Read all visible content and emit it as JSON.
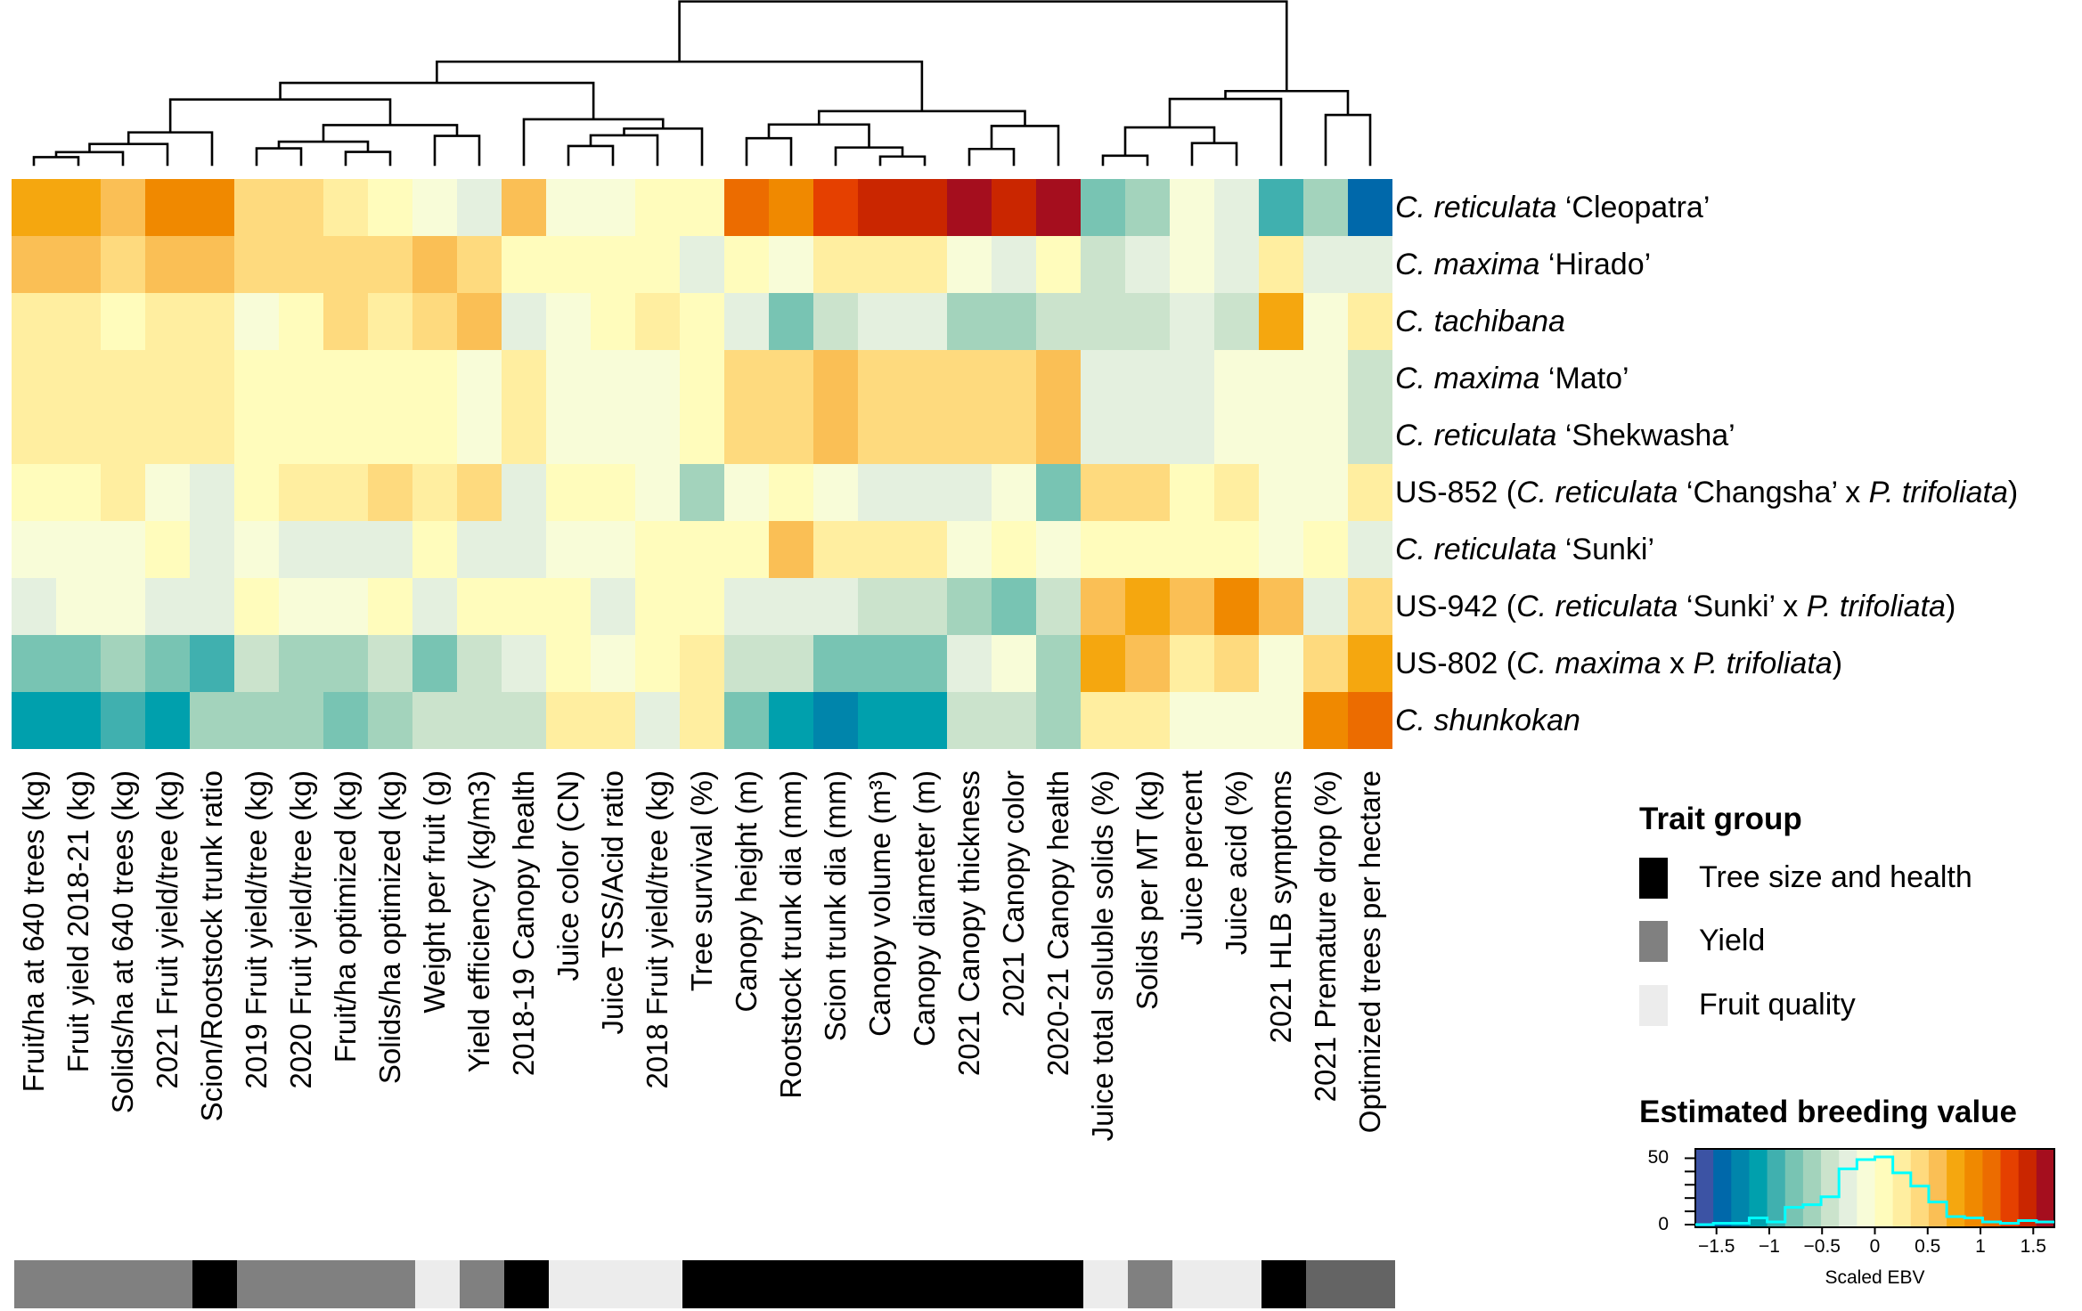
{
  "chart_data": {
    "type": "heatmap",
    "columns": [
      "Fruit/ha at 640 trees (kg)",
      "Fruit yield 2018-21 (kg)",
      "Solids/ha at 640 trees (kg)",
      "2021 Fruit yield/tree (kg)",
      "Scion/Rootstock trunk ratio",
      "2019 Fruit yield/tree (kg)",
      "2020 Fruit yield/tree (kg)",
      "Fruit/ha optimized (kg)",
      "Solids/ha optimized (kg)",
      "Weight per fruit (g)",
      "Yield efficiency (kg/m3)",
      "2018-19 Canopy health",
      "Juice color (CN)",
      "Juice TSS/Acid ratio",
      "2018 Fruit yield/tree (kg)",
      "Tree survival (%)",
      "Canopy height (m)",
      "Rootstock trunk dia (mm)",
      "Scion trunk dia (mm)",
      "Canopy volume (m³)",
      "Canopy diameter (m)",
      "2021 Canopy thickness",
      "2021 Canopy color",
      "2020-21 Canopy health",
      "Juice total soluble solids (%)",
      "Solids per MT (kg)",
      "Juice percent",
      "Juice acid (%)",
      "2021 HLB symptoms",
      "2021 Premature drop (%)",
      "Optimized trees per hectare"
    ],
    "rows": [
      [
        {
          "t": "C. reticulata",
          "i": true
        },
        {
          "t": " ‘Cleopatra’",
          "i": false
        }
      ],
      [
        {
          "t": "C. maxima",
          "i": true
        },
        {
          "t": " ‘Hirado’",
          "i": false
        }
      ],
      [
        {
          "t": "C. tachibana",
          "i": true
        }
      ],
      [
        {
          "t": "C. maxima",
          "i": true
        },
        {
          "t": " ‘Mato’",
          "i": false
        }
      ],
      [
        {
          "t": "C. reticulata",
          "i": true
        },
        {
          "t": " ‘Shekwasha’",
          "i": false
        }
      ],
      [
        {
          "t": "US-852 (",
          "i": false
        },
        {
          "t": "C. reticulata",
          "i": true
        },
        {
          "t": " ‘Changsha’ x ",
          "i": false
        },
        {
          "t": "P. trifoliata",
          "i": true
        },
        {
          "t": ")",
          "i": false
        }
      ],
      [
        {
          "t": "C. reticulata",
          "i": true
        },
        {
          "t": " ‘Sunki’",
          "i": false
        }
      ],
      [
        {
          "t": "US-942 (",
          "i": false
        },
        {
          "t": "C. reticulata",
          "i": true
        },
        {
          "t": " ‘Sunki’ x ",
          "i": false
        },
        {
          "t": "P. trifoliata",
          "i": true
        },
        {
          "t": ")",
          "i": false
        }
      ],
      [
        {
          "t": "US-802 (",
          "i": false
        },
        {
          "t": "C. maxima",
          "i": true
        },
        {
          "t": " x ",
          "i": false
        },
        {
          "t": "P. trifoliata",
          "i": true
        },
        {
          "t": ")",
          "i": false
        }
      ],
      [
        {
          "t": "C. shunkokan",
          "i": true
        }
      ]
    ],
    "values": [
      [
        0.77,
        0.77,
        0.6,
        0.94,
        0.94,
        0.43,
        0.43,
        0.26,
        0.09,
        -0.09,
        -0.26,
        0.6,
        -0.09,
        -0.09,
        0.09,
        0.09,
        1.11,
        0.94,
        1.28,
        1.45,
        1.45,
        1.62,
        1.45,
        1.62,
        -0.77,
        -0.6,
        -0.09,
        -0.26,
        -0.94,
        -0.6,
        -1.45
      ],
      [
        0.6,
        0.6,
        0.43,
        0.6,
        0.6,
        0.43,
        0.43,
        0.43,
        0.43,
        0.6,
        0.43,
        0.09,
        0.09,
        0.09,
        0.09,
        -0.26,
        0.09,
        -0.09,
        0.26,
        0.26,
        0.26,
        -0.09,
        -0.26,
        0.09,
        -0.43,
        -0.26,
        -0.09,
        -0.26,
        0.26,
        -0.26,
        -0.26
      ],
      [
        0.26,
        0.26,
        0.09,
        0.26,
        0.26,
        -0.09,
        0.09,
        0.43,
        0.26,
        0.43,
        0.6,
        -0.26,
        -0.09,
        0.09,
        0.26,
        0.09,
        -0.26,
        -0.77,
        -0.43,
        -0.26,
        -0.26,
        -0.6,
        -0.6,
        -0.43,
        -0.43,
        -0.43,
        -0.26,
        -0.43,
        0.77,
        -0.09,
        0.26
      ],
      [
        0.26,
        0.26,
        0.26,
        0.26,
        0.26,
        0.09,
        0.09,
        0.09,
        0.09,
        0.09,
        -0.09,
        0.26,
        -0.09,
        -0.09,
        -0.09,
        0.09,
        0.43,
        0.43,
        0.6,
        0.43,
        0.43,
        0.43,
        0.43,
        0.6,
        -0.26,
        -0.26,
        -0.26,
        -0.09,
        -0.09,
        -0.09,
        -0.43
      ],
      [
        0.26,
        0.26,
        0.26,
        0.26,
        0.26,
        0.09,
        0.09,
        0.09,
        0.09,
        0.09,
        -0.09,
        0.26,
        -0.09,
        -0.09,
        -0.09,
        0.09,
        0.43,
        0.43,
        0.6,
        0.43,
        0.43,
        0.43,
        0.43,
        0.6,
        -0.26,
        -0.26,
        -0.26,
        -0.09,
        -0.09,
        -0.09,
        -0.43
      ],
      [
        0.09,
        0.09,
        0.26,
        -0.09,
        -0.26,
        0.09,
        0.26,
        0.26,
        0.43,
        0.26,
        0.43,
        -0.26,
        0.09,
        0.09,
        -0.09,
        -0.6,
        -0.09,
        0.09,
        -0.09,
        -0.26,
        -0.26,
        -0.26,
        -0.09,
        -0.77,
        0.43,
        0.43,
        0.09,
        0.26,
        -0.09,
        -0.09,
        0.26
      ],
      [
        -0.09,
        -0.09,
        -0.09,
        0.09,
        -0.26,
        -0.09,
        -0.26,
        -0.26,
        -0.26,
        0.09,
        -0.26,
        -0.26,
        -0.09,
        -0.09,
        0.09,
        0.09,
        0.09,
        0.6,
        0.26,
        0.26,
        0.26,
        -0.09,
        0.09,
        -0.09,
        0.09,
        0.09,
        0.09,
        0.09,
        -0.09,
        0.09,
        -0.26
      ],
      [
        -0.26,
        -0.09,
        -0.09,
        -0.26,
        -0.26,
        0.09,
        -0.09,
        -0.09,
        0.09,
        -0.26,
        0.09,
        0.09,
        0.09,
        -0.26,
        0.09,
        0.09,
        -0.26,
        -0.26,
        -0.26,
        -0.43,
        -0.43,
        -0.6,
        -0.77,
        -0.43,
        0.6,
        0.77,
        0.6,
        0.94,
        0.6,
        -0.26,
        0.43
      ],
      [
        -0.77,
        -0.77,
        -0.6,
        -0.77,
        -0.94,
        -0.43,
        -0.6,
        -0.6,
        -0.43,
        -0.77,
        -0.43,
        -0.26,
        0.09,
        -0.09,
        0.09,
        0.26,
        -0.43,
        -0.43,
        -0.77,
        -0.77,
        -0.77,
        -0.26,
        -0.09,
        -0.6,
        0.77,
        0.6,
        0.26,
        0.43,
        -0.09,
        0.43,
        0.77
      ],
      [
        -1.11,
        -1.11,
        -0.94,
        -1.11,
        -0.6,
        -0.6,
        -0.6,
        -0.77,
        -0.6,
        -0.43,
        -0.43,
        -0.43,
        0.26,
        0.26,
        -0.26,
        0.26,
        -0.77,
        -1.11,
        -1.28,
        -1.11,
        -1.11,
        -0.43,
        -0.43,
        -0.6,
        0.26,
        0.26,
        -0.09,
        -0.09,
        -0.09,
        0.94,
        1.11
      ]
    ],
    "column_trait_colors": [
      "#808080",
      "#808080",
      "#808080",
      "#808080",
      "#000000",
      "#808080",
      "#808080",
      "#808080",
      "#808080",
      "#ececec",
      "#808080",
      "#000000",
      "#ececec",
      "#ececec",
      "#ececec",
      "#000000",
      "#000000",
      "#000000",
      "#000000",
      "#000000",
      "#000000",
      "#000000",
      "#000000",
      "#000000",
      "#ececec",
      "#808080",
      "#ececec",
      "#ececec",
      "#000000",
      "#646464",
      "#646464"
    ],
    "color_scale": {
      "range": [
        -1.7,
        1.7
      ],
      "colors": [
        "#3c53a4",
        "#0068aa",
        "#0085ab",
        "#00a0ad",
        "#40b0af",
        "#78c4b3",
        "#a3d3bc",
        "#cbe3cc",
        "#e4f0df",
        "#f8fcd8",
        "#fffcbc",
        "#ffeea0",
        "#feda7e",
        "#fabf55",
        "#f5a70f",
        "#f08900",
        "#ec6c00",
        "#e54000",
        "#ca2600",
        "#a50e1e"
      ]
    },
    "histogram": {
      "counts": [
        0,
        1,
        1,
        5,
        2,
        13,
        15,
        21,
        42,
        49,
        51,
        39,
        29,
        17,
        6,
        5,
        2,
        1,
        3,
        2
      ],
      "ylim": [
        0,
        55
      ],
      "yticks": [
        "0",
        "50"
      ],
      "xticks": [
        -1.5,
        -1,
        -0.5,
        0,
        0.5,
        1,
        1.5
      ],
      "xtick_labels": [
        "−1.5",
        "−1",
        "−0.5",
        "0",
        "0.5",
        "1",
        "1.5"
      ],
      "xlabel": "Scaled EBV",
      "line_color": "#00ffff"
    }
  },
  "legend": {
    "trait_group_title": "Trait group",
    "trait_groups": [
      {
        "label": "Tree size and health",
        "color": "#000000"
      },
      {
        "label": "Yield",
        "color": "#808080"
      },
      {
        "label": "Fruit quality",
        "color": "#ececec"
      }
    ],
    "ebv_title": "Estimated breeding value"
  }
}
